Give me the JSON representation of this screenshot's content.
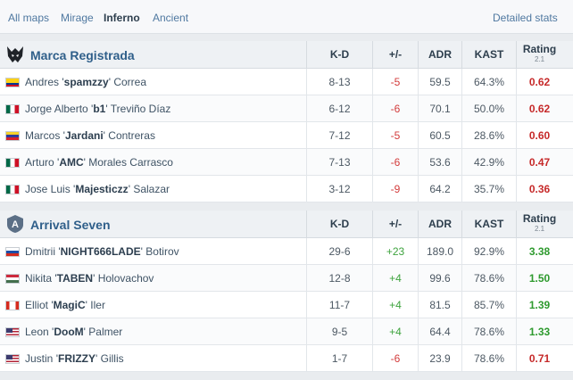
{
  "maps": {
    "tabs": [
      "All maps",
      "Mirage",
      "Inferno",
      "Ancient"
    ],
    "active": "Inferno",
    "detailed_stats_label": "Detailed stats"
  },
  "columns": {
    "kd": "K-D",
    "plusminus": "+/-",
    "adr": "ADR",
    "kast": "KAST",
    "rating": "Rating",
    "rating_version": "2.1"
  },
  "colors": {
    "positive": "#3ea33e",
    "negative": "#d33b3b",
    "rating_good": "#2e9a2e",
    "rating_bad": "#c62a2a",
    "team_name": "#2f5f8a"
  },
  "teams": [
    {
      "name": "Marca Registrada",
      "logo_icon": "wolf-icon",
      "players": [
        {
          "first": "Andres",
          "nick": "spamzzy",
          "last": "Correa",
          "flag": "colombia-flag",
          "kd": "8-13",
          "plusminus": "-5",
          "adr": "59.5",
          "kast": "64.3%",
          "rating": "0.62"
        },
        {
          "first": "Jorge Alberto",
          "nick": "b1",
          "last": "Treviño Díaz",
          "flag": "mexico-flag",
          "kd": "6-12",
          "plusminus": "-6",
          "adr": "70.1",
          "kast": "50.0%",
          "rating": "0.62"
        },
        {
          "first": "Marcos",
          "nick": "Jardani",
          "last": "Contreras",
          "flag": "venezuela-flag",
          "kd": "7-12",
          "plusminus": "-5",
          "adr": "60.5",
          "kast": "28.6%",
          "rating": "0.60"
        },
        {
          "first": "Arturo",
          "nick": "AMC",
          "last": "Morales Carrasco",
          "flag": "mexico-flag",
          "kd": "7-13",
          "plusminus": "-6",
          "adr": "53.6",
          "kast": "42.9%",
          "rating": "0.47"
        },
        {
          "first": "Jose Luis",
          "nick": "Majesticzz",
          "last": "Salazar",
          "flag": "mexico-flag",
          "kd": "3-12",
          "plusminus": "-9",
          "adr": "64.2",
          "kast": "35.7%",
          "rating": "0.36"
        }
      ]
    },
    {
      "name": "Arrival Seven",
      "logo_icon": "shield-a-icon",
      "players": [
        {
          "first": "Dmitrii",
          "nick": "NIGHT666LADE",
          "last": "Botirov",
          "flag": "russia-flag",
          "kd": "29-6",
          "plusminus": "+23",
          "adr": "189.0",
          "kast": "92.9%",
          "rating": "3.38"
        },
        {
          "first": "Nikita",
          "nick": "TABEN",
          "last": "Holovachov",
          "flag": "hungary-flag",
          "kd": "12-8",
          "plusminus": "+4",
          "adr": "99.6",
          "kast": "78.6%",
          "rating": "1.50"
        },
        {
          "first": "Elliot",
          "nick": "MagiC",
          "last": "Iler",
          "flag": "canada-flag",
          "kd": "11-7",
          "plusminus": "+4",
          "adr": "81.5",
          "kast": "85.7%",
          "rating": "1.39"
        },
        {
          "first": "Leon",
          "nick": "DooM",
          "last": "Palmer",
          "flag": "usa-flag",
          "kd": "9-5",
          "plusminus": "+4",
          "adr": "64.4",
          "kast": "78.6%",
          "rating": "1.33"
        },
        {
          "first": "Justin",
          "nick": "FRIZZY",
          "last": "Gillis",
          "flag": "usa-flag",
          "kd": "1-7",
          "plusminus": "-6",
          "adr": "23.9",
          "kast": "78.6%",
          "rating": "0.71"
        }
      ]
    }
  ]
}
